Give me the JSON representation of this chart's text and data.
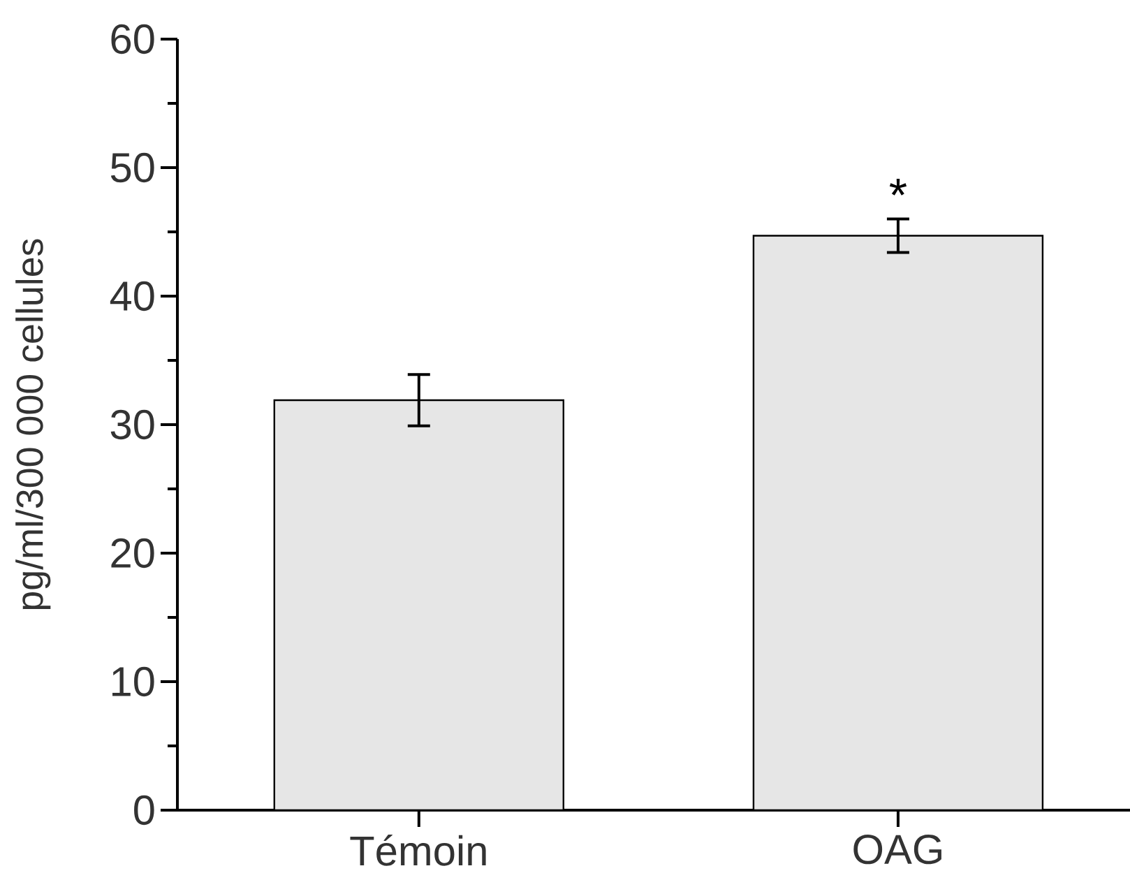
{
  "chart_data": {
    "type": "bar",
    "ylabel": "pg/ml/300 000 cellules",
    "categories": [
      "Témoin",
      "OAG"
    ],
    "values": [
      31.9,
      44.7
    ],
    "errors": [
      2,
      1.3
    ],
    "color": "#e6e6e6",
    "ylim": [
      0,
      60
    ],
    "yticks": [
      0,
      {
        "value": 5,
        "label": null
      },
      10,
      {
        "value": 15,
        "label": null
      },
      20,
      {
        "value": 25,
        "label": null
      },
      30,
      {
        "value": 35,
        "label": null
      },
      40,
      {
        "value": 45,
        "label": null
      },
      50,
      {
        "value": 55,
        "label": null
      },
      60
    ],
    "annotations": [
      "*"
    ],
    "grid": false
  }
}
